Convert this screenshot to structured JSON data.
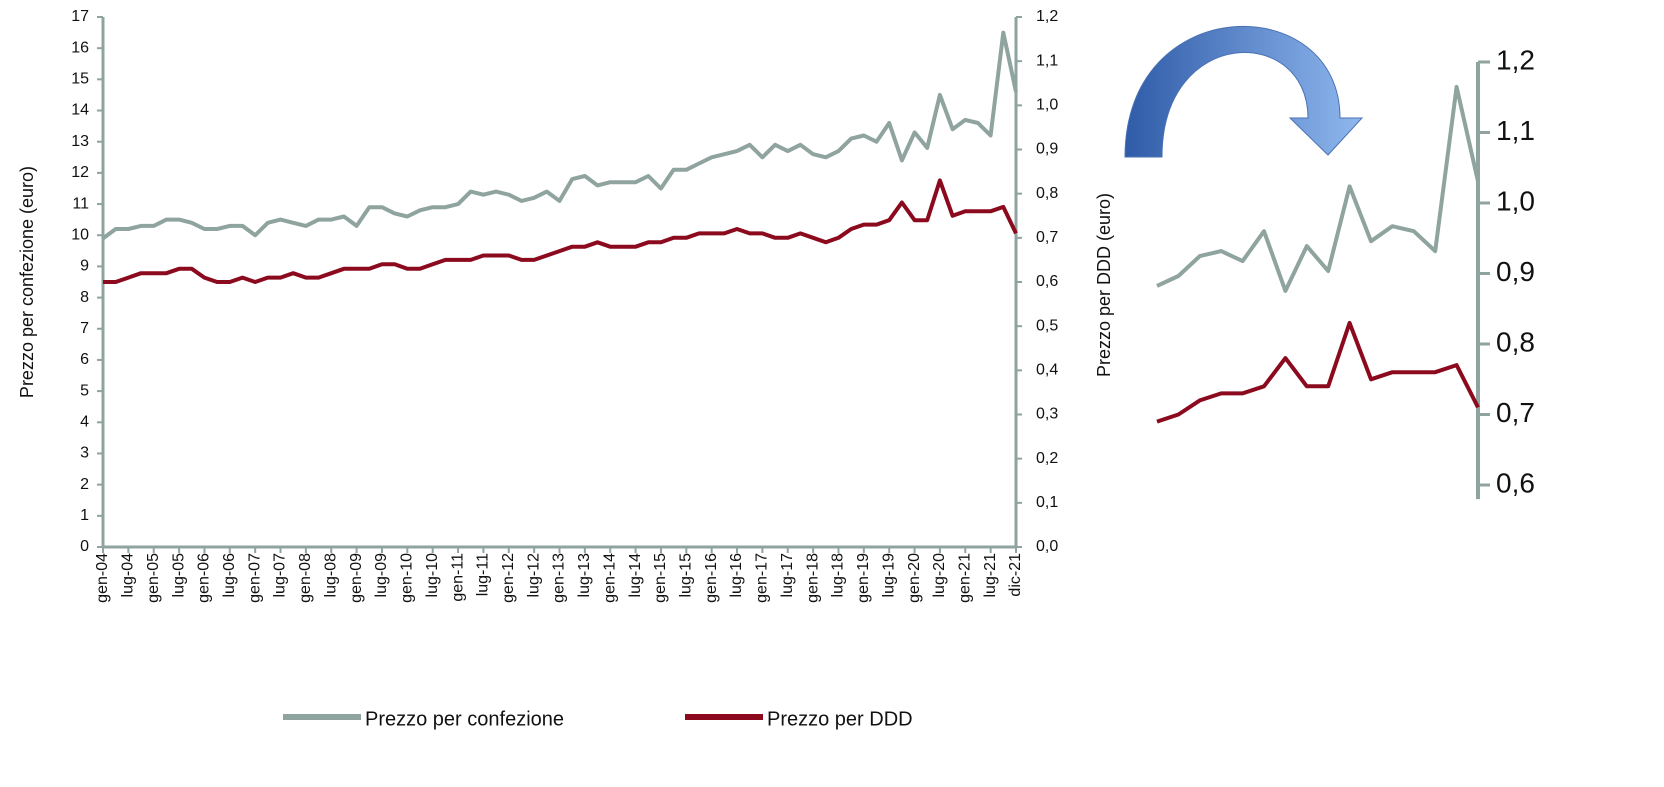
{
  "chart_data": [
    {
      "type": "line",
      "ylabel": "Prezzo per confezione (euro)",
      "categories": [
        "gen-04",
        null,
        "lug-04",
        null,
        "gen-05",
        null,
        "lug-05",
        null,
        "gen-06",
        null,
        "lug-06",
        null,
        "gen-07",
        null,
        "lug-07",
        null,
        "gen-08",
        null,
        "lug-08",
        null,
        "gen-09",
        null,
        "lug-09",
        null,
        "gen-10",
        null,
        "lug-10",
        null,
        "gen-11",
        null,
        "lug-11",
        null,
        "gen-12",
        null,
        "lug-12",
        null,
        "gen-13",
        null,
        "lug-13",
        null,
        "gen-14",
        null,
        "lug-14",
        null,
        "gen-15",
        null,
        "lug-15",
        null,
        "gen-16",
        null,
        "lug-16",
        null,
        "gen-17",
        null,
        "lug-17",
        null,
        "gen-18",
        null,
        "lug-18",
        null,
        "gen-19",
        null,
        "lug-19",
        null,
        "gen-20",
        null,
        "lug-20",
        null,
        "gen-21",
        null,
        "lug-21",
        null,
        "dic-21"
      ],
      "series": [
        {
          "name": "Prezzo per confezione",
          "color": "#8fa39f",
          "axis": "y",
          "values": [
            9.9,
            10.2,
            10.2,
            10.3,
            10.3,
            10.5,
            10.5,
            10.4,
            10.2,
            10.2,
            10.3,
            10.3,
            10.0,
            10.4,
            10.5,
            10.4,
            10.3,
            10.5,
            10.5,
            10.6,
            10.3,
            10.9,
            10.9,
            10.7,
            10.6,
            10.8,
            10.9,
            10.9,
            11.0,
            11.4,
            11.3,
            11.4,
            11.3,
            11.1,
            11.2,
            11.4,
            11.1,
            11.8,
            11.9,
            11.6,
            11.7,
            11.7,
            11.7,
            11.9,
            11.5,
            12.1,
            12.1,
            12.3,
            12.5,
            12.6,
            12.7,
            12.9,
            12.5,
            12.9,
            12.7,
            12.9,
            12.6,
            12.5,
            12.7,
            13.1,
            13.2,
            13.0,
            13.6,
            12.4,
            13.3,
            12.8,
            14.5,
            13.4,
            13.7,
            13.6,
            13.2,
            16.5,
            14.6
          ]
        },
        {
          "name": "Prezzo per DDD",
          "color": "#8b0a1e",
          "axis": "y2",
          "values": [
            0.6,
            0.6,
            0.61,
            0.62,
            0.62,
            0.62,
            0.63,
            0.63,
            0.61,
            0.6,
            0.6,
            0.61,
            0.6,
            0.61,
            0.61,
            0.62,
            0.61,
            0.61,
            0.62,
            0.63,
            0.63,
            0.63,
            0.64,
            0.64,
            0.63,
            0.63,
            0.64,
            0.65,
            0.65,
            0.65,
            0.66,
            0.66,
            0.66,
            0.65,
            0.65,
            0.66,
            0.67,
            0.68,
            0.68,
            0.69,
            0.68,
            0.68,
            0.68,
            0.69,
            0.69,
            0.7,
            0.7,
            0.71,
            0.71,
            0.71,
            0.72,
            0.71,
            0.71,
            0.7,
            0.7,
            0.71,
            0.7,
            0.69,
            0.7,
            0.72,
            0.73,
            0.73,
            0.74,
            0.78,
            0.74,
            0.74,
            0.83,
            0.75,
            0.76,
            0.76,
            0.76,
            0.77,
            0.71
          ]
        }
      ],
      "ylim": [
        0,
        17
      ],
      "yticks": [
        0,
        1,
        2,
        3,
        4,
        5,
        6,
        7,
        8,
        9,
        10,
        11,
        12,
        13,
        14,
        15,
        16,
        17
      ],
      "y2lim": [
        0,
        1.2
      ],
      "y2ticks": [
        {
          "value": 0,
          "label": "0,0"
        },
        {
          "value": 0.1,
          "label": "0,1"
        },
        {
          "value": 0.2,
          "label": "0,2"
        },
        {
          "value": 0.3,
          "label": "0,3"
        },
        {
          "value": 0.4,
          "label": "0,4"
        },
        {
          "value": 0.5,
          "label": "0,5"
        },
        {
          "value": 0.6,
          "label": "0,6"
        },
        {
          "value": 0.7,
          "label": "0,7"
        },
        {
          "value": 0.8,
          "label": "0,8"
        },
        {
          "value": 0.9,
          "label": "0,9"
        },
        {
          "value": 1.0,
          "label": "1,0"
        },
        {
          "value": 1.1,
          "label": "1,1"
        },
        {
          "value": 1.2,
          "label": "1,2"
        }
      ],
      "legend": "bottom"
    },
    {
      "type": "line",
      "ylabel": "Prezzo per DDD (euro)",
      "ylim": [
        0.58,
        1.2
      ],
      "yticks": [
        {
          "value": 0.6,
          "label": "0,6"
        },
        {
          "value": 0.7,
          "label": "0,7"
        },
        {
          "value": 0.8,
          "label": "0,8"
        },
        {
          "value": 0.9,
          "label": "0,9"
        },
        {
          "value": 1.0,
          "label": "1,0"
        },
        {
          "value": 1.1,
          "label": "1,1"
        },
        {
          "value": 1.2,
          "label": "1,2"
        }
      ]
    }
  ]
}
